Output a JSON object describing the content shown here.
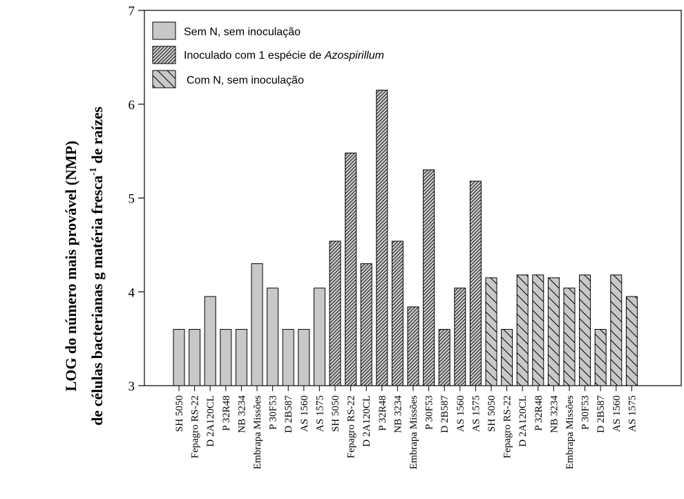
{
  "chart_data": {
    "type": "bar",
    "ylabel_line1": "LOG do número mais provável (NMP)",
    "ylabel_line2_a": "de células bacterianas  g matéria fresca",
    "ylabel_line2_sup": "-1",
    "ylabel_line2_b": " de raízes",
    "ylim": [
      3,
      7
    ],
    "yticks": [
      "3",
      "4",
      "5",
      "6",
      "7"
    ],
    "legend_position": "top-left",
    "legend": [
      {
        "text": "Sem N, sem inoculação"
      },
      {
        "text": "Inoculado com 1 espécie de ",
        "italic": "Azospirillum"
      },
      {
        "text": "Com N, sem inoculação"
      }
    ],
    "series": [
      {
        "fill": "#c8c8c8",
        "pattern": "solid",
        "categories": [
          "SH 5050",
          "Fepagro RS-22",
          "D 2A120CL",
          "P 32R48",
          "NB 3234",
          "Embrapa Missões",
          "P 30F53",
          "D 2B587",
          "AS 1560",
          "AS 1575"
        ],
        "values": [
          3.6,
          3.6,
          3.95,
          3.6,
          3.6,
          4.3,
          4.04,
          3.6,
          3.6,
          4.04
        ]
      },
      {
        "fill": "#c8c8c8",
        "pattern": "dense-diagonal",
        "categories": [
          "SH 5050",
          "Fepagro RS-22",
          "D 2A120CL",
          "P 32R48",
          "NB 3234",
          "Embrapa Missões",
          "P 30F53",
          "D 2B587",
          "AS 1560",
          "AS 1575"
        ],
        "values": [
          4.54,
          5.48,
          4.3,
          6.15,
          4.54,
          3.84,
          5.3,
          3.6,
          4.04,
          5.18
        ]
      },
      {
        "fill": "#c8c8c8",
        "pattern": "sparse-backslash",
        "categories": [
          "SH 5050",
          "Fepagro RS-22",
          "D 2A120CL",
          "P 32R48",
          "NB 3234",
          "Embrapa Missões",
          "P 30F53",
          "D 2B587",
          "AS 1560",
          "AS 1575"
        ],
        "values": [
          4.15,
          3.6,
          4.18,
          4.18,
          4.15,
          4.04,
          4.18,
          3.6,
          4.18,
          3.95
        ]
      }
    ]
  }
}
